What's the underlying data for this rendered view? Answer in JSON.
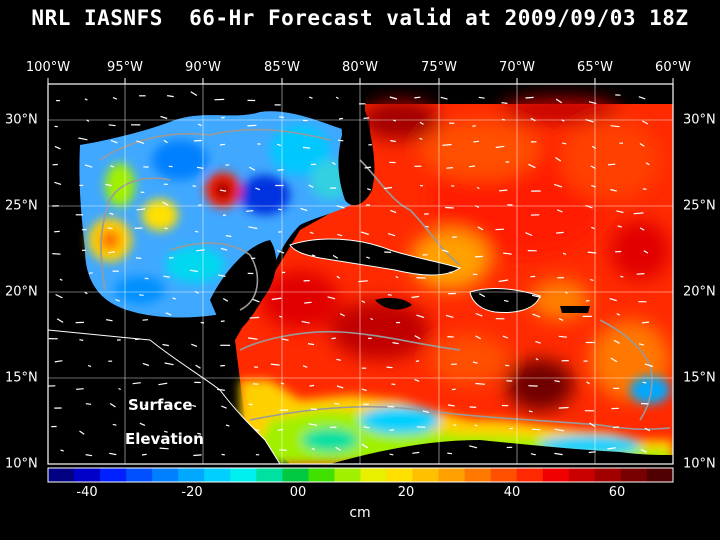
{
  "title": "NRL IASNFS  66-Hr Forecast valid at 2009/09/03 18Z",
  "lon_labels": [
    "100°W",
    "95°W",
    "90°W",
    "85°W",
    "80°W",
    "75°W",
    "70°W",
    "65°W",
    "60°W"
  ],
  "lat_labels": [
    "30°N",
    "25°N",
    "20°N",
    "15°N",
    "10°N"
  ],
  "annotation": {
    "line1": "Surface",
    "line2": "Elevation"
  },
  "colorbar": {
    "unit": "cm",
    "tick_labels": [
      "-40",
      "-20",
      "00",
      "20",
      "40",
      "60"
    ],
    "colors": [
      "#000080",
      "#0000c8",
      "#0020ff",
      "#0050ff",
      "#0080ff",
      "#00a8ff",
      "#00d0ff",
      "#00f0f0",
      "#00e0a0",
      "#00c840",
      "#40e000",
      "#a0f000",
      "#e8f000",
      "#ffe000",
      "#ffc000",
      "#ffa000",
      "#ff7800",
      "#ff5000",
      "#ff2800",
      "#f00000",
      "#c80000",
      "#a00000",
      "#780000",
      "#500000"
    ]
  },
  "legend_colors": {
    "ocean_high": "#ff2000",
    "ocean_gulf": "#40a0ff",
    "land": "#000000"
  }
}
